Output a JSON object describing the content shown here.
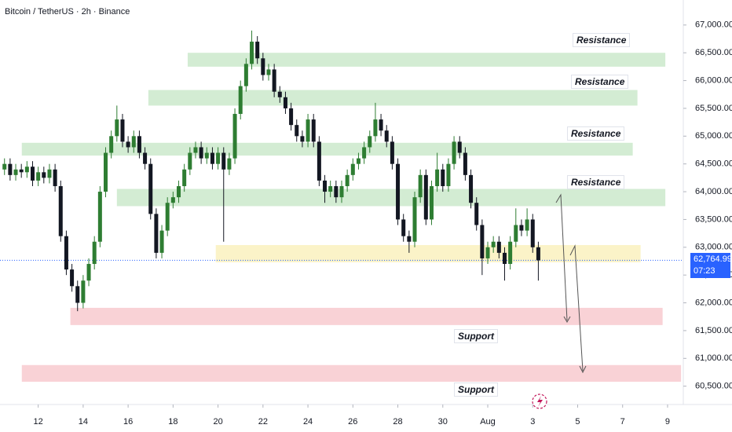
{
  "chart_data": {
    "type": "candlestick",
    "title": "Bitcoin / TetherUS · 2h · Binance",
    "up_color": "#2e7d32",
    "down_color": "#131722",
    "x": [
      10.5,
      10.75,
      11,
      11.25,
      11.5,
      11.75,
      12,
      12.25,
      12.5,
      12.75,
      13,
      13.25,
      13.5,
      13.75,
      14,
      14.25,
      14.5,
      14.75,
      15,
      15.25,
      15.5,
      15.75,
      16,
      16.25,
      16.5,
      16.75,
      17,
      17.25,
      17.5,
      17.75,
      18,
      18.25,
      18.5,
      18.75,
      19,
      19.25,
      19.5,
      19.75,
      20,
      20.25,
      20.5,
      20.75,
      21,
      21.25,
      21.5,
      21.75,
      22,
      22.25,
      22.5,
      22.75,
      23,
      23.25,
      23.5,
      23.75,
      24,
      24.25,
      24.5,
      24.75,
      25,
      25.25,
      25.5,
      25.75,
      26,
      26.25,
      26.5,
      26.75,
      27,
      27.25,
      27.5,
      27.75,
      28,
      28.25,
      28.5,
      28.75,
      29,
      29.25,
      29.5,
      29.75,
      30,
      30.25,
      30.5,
      30.75,
      31,
      31.25,
      31.5,
      31.75,
      32,
      32.25,
      32.5,
      32.75,
      33,
      33.25,
      33.5,
      33.75,
      34,
      34.25
    ],
    "open": [
      64400,
      64500,
      64300,
      64400,
      64350,
      64450,
      64200,
      64350,
      64250,
      64400,
      64100,
      63200,
      62600,
      62300,
      62000,
      62400,
      62700,
      63100,
      64000,
      64700,
      65000,
      65300,
      64900,
      64800,
      65000,
      64700,
      64500,
      63600,
      62900,
      63300,
      63800,
      63900,
      64100,
      64400,
      64700,
      64800,
      64600,
      64700,
      64500,
      64700,
      64400,
      64600,
      65400,
      65900,
      66300,
      66700,
      66400,
      66100,
      66200,
      65800,
      65700,
      65500,
      65200,
      65000,
      64900,
      65300,
      64900,
      64200,
      64000,
      64100,
      63900,
      64100,
      64300,
      64500,
      64600,
      64800,
      65000,
      65300,
      65100,
      64900,
      64500,
      63500,
      63200,
      63100,
      63900,
      64300,
      63500,
      64100,
      64400,
      64100,
      64500,
      64900,
      64700,
      64300,
      63800,
      63400,
      62800,
      63000,
      63100,
      62900,
      62700,
      63100,
      63400,
      63300,
      63500,
      63000
    ],
    "high": [
      64600,
      64600,
      64500,
      64500,
      64550,
      64550,
      64450,
      64450,
      64500,
      64500,
      64200,
      63300,
      62700,
      62400,
      62500,
      62800,
      63200,
      64100,
      64800,
      65100,
      65550,
      65400,
      65000,
      65100,
      65100,
      64800,
      64600,
      63700,
      63400,
      63900,
      64000,
      64200,
      64500,
      64800,
      64900,
      64900,
      64800,
      64800,
      64800,
      64800,
      64700,
      65500,
      66000,
      66400,
      66900,
      66800,
      66500,
      66300,
      66300,
      65900,
      65800,
      65600,
      65300,
      65100,
      65400,
      65400,
      65000,
      64300,
      64200,
      64200,
      64200,
      64400,
      64600,
      64700,
      64900,
      65100,
      65600,
      65400,
      65200,
      65000,
      64600,
      63600,
      63300,
      64000,
      64400,
      64400,
      64200,
      64700,
      64500,
      64600,
      65000,
      65000,
      64800,
      64400,
      63900,
      63500,
      63100,
      63200,
      63200,
      63000,
      63200,
      63700,
      63500,
      63700,
      63600,
      63100
    ],
    "low": [
      64300,
      64200,
      64200,
      64250,
      64250,
      64100,
      64100,
      64150,
      64150,
      64000,
      63100,
      62500,
      62200,
      61850,
      61900,
      62300,
      62600,
      63000,
      63900,
      64600,
      64900,
      64800,
      64700,
      64700,
      64600,
      64400,
      63500,
      62800,
      62800,
      63200,
      63700,
      63800,
      64000,
      64300,
      64600,
      64500,
      64500,
      64400,
      64400,
      63100,
      64300,
      64500,
      65300,
      65800,
      66200,
      66300,
      66000,
      66000,
      65700,
      65600,
      65400,
      65100,
      64900,
      64800,
      64800,
      64800,
      64100,
      63800,
      63900,
      63800,
      63800,
      64000,
      64200,
      64400,
      64500,
      64700,
      64900,
      65000,
      64800,
      64400,
      63400,
      63100,
      62900,
      63000,
      63800,
      63400,
      63400,
      64000,
      64000,
      64000,
      64400,
      64600,
      64200,
      63700,
      63300,
      62500,
      62700,
      62900,
      62800,
      62400,
      62600,
      63000,
      63200,
      63200,
      62900,
      62400
    ],
    "close": [
      64500,
      64300,
      64400,
      64350,
      64450,
      64200,
      64350,
      64250,
      64400,
      64100,
      63200,
      62600,
      62300,
      62000,
      62400,
      62700,
      63100,
      64000,
      64700,
      65000,
      65300,
      64900,
      64800,
      65000,
      64700,
      64500,
      63600,
      62900,
      63300,
      63800,
      63900,
      64100,
      64400,
      64700,
      64800,
      64600,
      64700,
      64500,
      64700,
      64400,
      64600,
      65400,
      65900,
      66300,
      66700,
      66400,
      66100,
      66200,
      65800,
      65700,
      65500,
      65200,
      65000,
      64900,
      65300,
      64900,
      64200,
      64000,
      64100,
      63900,
      64100,
      64300,
      64500,
      64600,
      64800,
      65000,
      65300,
      65100,
      64900,
      64500,
      63500,
      63200,
      63100,
      63900,
      64300,
      63500,
      64100,
      64400,
      64100,
      64500,
      64900,
      64700,
      64300,
      63800,
      63400,
      62800,
      63000,
      63100,
      62900,
      62700,
      63100,
      63400,
      63300,
      63500,
      63000,
      62765
    ],
    "xlim": [
      10.3,
      40.7
    ],
    "ylim": [
      60170,
      67450
    ],
    "xticks": [
      12,
      14,
      16,
      18,
      20,
      22,
      24,
      26,
      28,
      30,
      {
        "value": 32,
        "label": "Aug"
      },
      {
        "value": 34,
        "label": "3"
      },
      {
        "value": 36,
        "label": "5"
      },
      {
        "value": 38,
        "label": "7"
      },
      {
        "value": 40,
        "label": "9"
      }
    ],
    "yticks": [
      {
        "value": 60500,
        "label": "60,500.00"
      },
      {
        "value": 61000,
        "label": "61,000.00"
      },
      {
        "value": 61500,
        "label": "61,500.00"
      },
      {
        "value": 62000,
        "label": "62,000.00"
      },
      {
        "value": 62500,
        "label": "62,500.00"
      },
      {
        "value": 63000,
        "label": "63,000.00"
      },
      {
        "value": 63500,
        "label": "63,500.00"
      },
      {
        "value": 64000,
        "label": "64,000.00"
      },
      {
        "value": 64500,
        "label": "64,500.00"
      },
      {
        "value": 65000,
        "label": "65,000.00"
      },
      {
        "value": 65500,
        "label": "65,500.00"
      },
      {
        "value": 66000,
        "label": "66,000.00"
      },
      {
        "value": 66500,
        "label": "66,500.00"
      },
      {
        "value": 67000,
        "label": "67,000.00"
      }
    ],
    "last_price": {
      "value": 62764.99,
      "label": "62,764.99"
    },
    "countdown": "07:23",
    "zones": [
      {
        "x": [
          18.65,
          39.9
        ],
        "y": [
          66250,
          66500
        ],
        "color": "#d3ecd3"
      },
      {
        "x": [
          16.9,
          38.66
        ],
        "y": [
          65550,
          65830
        ],
        "color": "#d3ecd3"
      },
      {
        "x": [
          11.27,
          38.45
        ],
        "y": [
          64650,
          64880
        ],
        "color": "#d3ecd3"
      },
      {
        "x": [
          15.5,
          39.9
        ],
        "y": [
          63740,
          64050
        ],
        "color": "#d3ecd3"
      },
      {
        "x": [
          19.9,
          38.8
        ],
        "y": [
          62730,
          63040
        ],
        "color": "#fbf3c8"
      },
      {
        "x": [
          13.43,
          39.78
        ],
        "y": [
          61600,
          61910
        ],
        "color": "#f9d2d6"
      },
      {
        "x": [
          11.27,
          40.6
        ],
        "y": [
          60580,
          60880
        ],
        "color": "#f9d2d6"
      }
    ],
    "annotations": [
      "Resistance",
      "Resistance",
      "Resistance",
      "Resistance",
      "Support",
      "Support"
    ]
  }
}
